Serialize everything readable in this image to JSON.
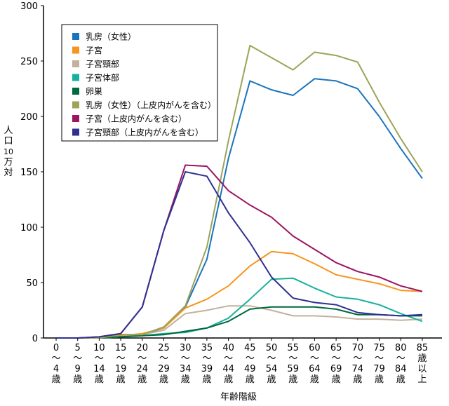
{
  "chart_data": {
    "type": "line",
    "title": "",
    "xlabel": "年齢階級",
    "ylabel": [
      "人",
      "口",
      "10",
      "万",
      "対"
    ],
    "ylim": [
      0,
      300
    ],
    "yticks": [
      0,
      50,
      100,
      150,
      200,
      250,
      300
    ],
    "categories": [
      "0～4歳",
      "5～9歳",
      "10～14歳",
      "15～19歳",
      "20～24歳",
      "25～29歳",
      "30～34歳",
      "35～39歳",
      "40～44歳",
      "45～49歳",
      "50～54歳",
      "55～59歳",
      "60～64歳",
      "65～69歳",
      "70～74歳",
      "75～79歳",
      "80～84歳",
      "85歳以上"
    ],
    "category_label_parts": [
      [
        "0",
        "～",
        "4",
        "歳"
      ],
      [
        "5",
        "～",
        "9",
        "歳"
      ],
      [
        "10",
        "～",
        "14",
        "歳"
      ],
      [
        "15",
        "～",
        "19",
        "歳"
      ],
      [
        "20",
        "～",
        "24",
        "歳"
      ],
      [
        "25",
        "～",
        "29",
        "歳"
      ],
      [
        "30",
        "～",
        "34",
        "歳"
      ],
      [
        "35",
        "～",
        "39",
        "歳"
      ],
      [
        "40",
        "～",
        "44",
        "歳"
      ],
      [
        "45",
        "～",
        "49",
        "歳"
      ],
      [
        "50",
        "～",
        "54",
        "歳"
      ],
      [
        "55",
        "～",
        "59",
        "歳"
      ],
      [
        "60",
        "～",
        "64",
        "歳"
      ],
      [
        "65",
        "～",
        "69",
        "歳"
      ],
      [
        "70",
        "～",
        "74",
        "歳"
      ],
      [
        "75",
        "～",
        "79",
        "歳"
      ],
      [
        "80",
        "～",
        "84",
        "歳"
      ],
      [
        "85",
        "歳",
        "以",
        "上"
      ]
    ],
    "legend_position": "top-left",
    "series": [
      {
        "name": "乳房（女性）",
        "color": "#1a75bc",
        "values": [
          0,
          0,
          0,
          3,
          3,
          9,
          28,
          71,
          162,
          232,
          224,
          219,
          234,
          232,
          225,
          200,
          171,
          144
        ]
      },
      {
        "name": "子宮",
        "color": "#f7941d",
        "values": [
          0,
          0,
          0,
          2,
          4,
          9,
          27,
          35,
          47,
          65,
          78,
          76,
          67,
          57,
          53,
          49,
          43,
          42
        ]
      },
      {
        "name": "子宮頸部",
        "color": "#c2b29e",
        "values": [
          0,
          0,
          0,
          1,
          3,
          7,
          22,
          25,
          29,
          29,
          25,
          20,
          20,
          19,
          17,
          17,
          16,
          17
        ]
      },
      {
        "name": "子宮体部",
        "color": "#17b09b",
        "values": [
          0,
          0,
          0,
          1,
          2,
          4,
          5,
          9,
          18,
          35,
          53,
          54,
          45,
          37,
          35,
          30,
          22,
          15
        ]
      },
      {
        "name": "卵巣",
        "color": "#00693e",
        "values": [
          0,
          0,
          0,
          1,
          2,
          3,
          6,
          9,
          15,
          26,
          28,
          28,
          28,
          26,
          21,
          21,
          20,
          20
        ]
      },
      {
        "name": "乳房（女性）（上皮内がんを含む）",
        "color": "#9da359",
        "values": [
          0,
          0,
          0,
          3,
          3,
          10,
          29,
          82,
          178,
          264,
          253,
          242,
          258,
          255,
          249,
          213,
          180,
          150
        ]
      },
      {
        "name": "子宮（上皮内がんを含む）",
        "color": "#9b1561",
        "values": [
          0,
          0,
          1,
          4,
          28,
          97,
          156,
          155,
          133,
          120,
          109,
          92,
          80,
          68,
          60,
          55,
          47,
          42
        ]
      },
      {
        "name": "子宮頸部（上皮内がんを含む）",
        "color": "#2e3192",
        "values": [
          0,
          0,
          1,
          4,
          28,
          97,
          150,
          146,
          113,
          86,
          55,
          36,
          32,
          30,
          23,
          21,
          20,
          21
        ]
      }
    ]
  }
}
